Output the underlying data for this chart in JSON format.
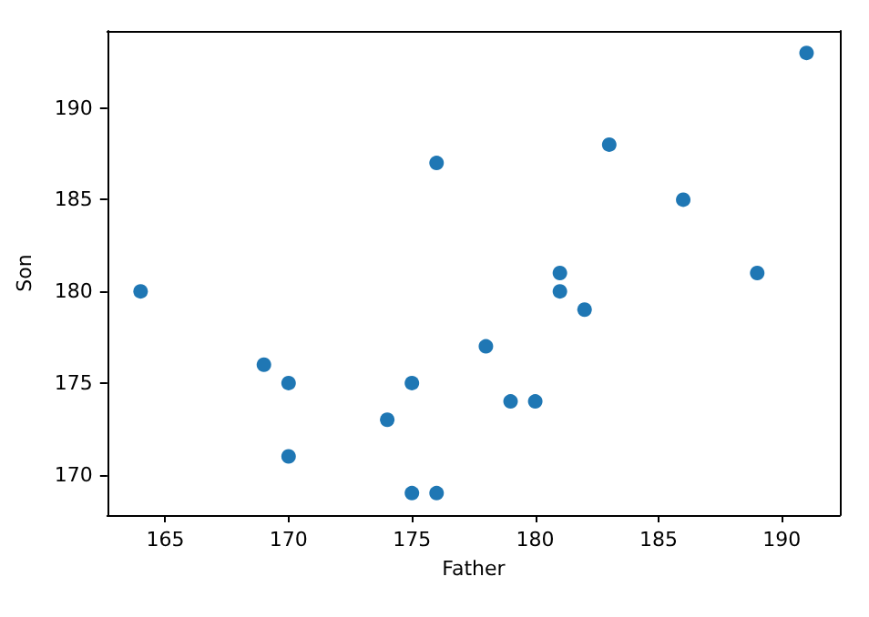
{
  "chart_data": {
    "type": "scatter",
    "xlabel": "Father",
    "ylabel": "Son",
    "x": [
      164,
      169,
      170,
      170,
      174,
      175,
      175,
      176,
      176,
      178,
      179,
      180,
      181,
      181,
      182,
      183,
      186,
      189,
      191
    ],
    "series": [
      {
        "color": "#1f77b4",
        "values": [
          180,
          176,
          175,
          171,
          173,
          175,
          169,
          169,
          187,
          177,
          174,
          174,
          181,
          180,
          179,
          188,
          185,
          181,
          193
        ]
      }
    ],
    "xlim": [
      162.65,
      192.35
    ],
    "ylim": [
      167.8,
      194.2
    ],
    "xticks": [
      165,
      170,
      175,
      180,
      185,
      190
    ],
    "yticks": [
      170,
      175,
      180,
      185,
      190
    ],
    "grid": false,
    "marker": "circle"
  }
}
